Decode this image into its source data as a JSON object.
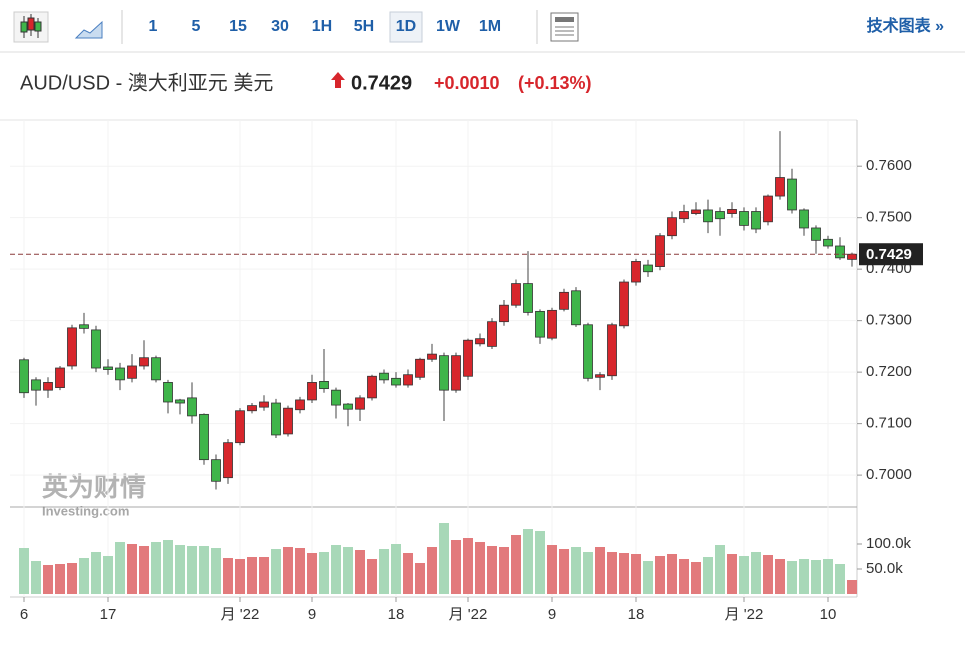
{
  "toolbar": {
    "intervals": [
      "1",
      "5",
      "15",
      "30",
      "1H",
      "5H",
      "1D",
      "1W",
      "1M"
    ],
    "selected": 6,
    "link": "技术图表 »"
  },
  "header": {
    "symbol": "AUD/USD - 澳大利亚元 美元",
    "price": "0.7429",
    "change": "+0.0010",
    "change_pct": "(+0.13%)"
  },
  "watermark": {
    "cn": "英为财情",
    "en": "Investing.com"
  },
  "chart_data": {
    "type": "candlestick",
    "categories": [
      "6",
      null,
      null,
      null,
      null,
      null,
      null,
      "17",
      null,
      null,
      null,
      null,
      null,
      null,
      null,
      null,
      null,
      null,
      "月 '22",
      null,
      null,
      null,
      null,
      null,
      "9",
      null,
      null,
      null,
      null,
      null,
      null,
      "18",
      null,
      null,
      null,
      null,
      null,
      "月 '22",
      null,
      null,
      null,
      null,
      null,
      null,
      "9",
      null,
      null,
      null,
      null,
      null,
      null,
      "18",
      null,
      null,
      null,
      null,
      null,
      null,
      null,
      null,
      "月 '22",
      null,
      null,
      null,
      null,
      null,
      null,
      "10",
      null,
      null
    ],
    "open": [
      0.7224,
      0.7185,
      0.7165,
      0.717,
      0.7212,
      0.7292,
      0.7282,
      0.721,
      0.7208,
      0.7188,
      0.7212,
      0.7228,
      0.718,
      0.7146,
      0.715,
      0.7118,
      0.703,
      0.6995,
      0.7063,
      0.7125,
      0.7132,
      0.714,
      0.708,
      0.7127,
      0.7146,
      0.7182,
      0.7165,
      0.7138,
      0.7128,
      0.715,
      0.7198,
      0.7188,
      0.7175,
      0.719,
      0.7225,
      0.7232,
      0.7165,
      0.7192,
      0.7255,
      0.725,
      0.7298,
      0.733,
      0.7372,
      0.7318,
      0.7266,
      0.7322,
      0.7358,
      0.7292,
      0.719,
      0.7193,
      0.729,
      0.7375,
      0.7408,
      0.7405,
      0.7465,
      0.7498,
      0.7508,
      0.7515,
      0.7512,
      0.7508,
      0.7512,
      0.7512,
      0.7492,
      0.7542,
      0.7575,
      0.7515,
      0.748,
      0.7458,
      0.7445,
      0.7419
    ],
    "high": [
      0.7228,
      0.719,
      0.719,
      0.7212,
      0.7292,
      0.7315,
      0.729,
      0.7225,
      0.7218,
      0.7235,
      0.7262,
      0.7232,
      0.7185,
      0.7148,
      0.718,
      0.712,
      0.704,
      0.707,
      0.713,
      0.714,
      0.7155,
      0.7148,
      0.7135,
      0.7152,
      0.7195,
      0.7245,
      0.717,
      0.714,
      0.7155,
      0.7195,
      0.7205,
      0.72,
      0.7205,
      0.7228,
      0.7255,
      0.7238,
      0.7238,
      0.7265,
      0.7275,
      0.7305,
      0.734,
      0.738,
      0.7435,
      0.7322,
      0.7325,
      0.7362,
      0.7365,
      0.7296,
      0.72,
      0.7296,
      0.738,
      0.742,
      0.7418,
      0.747,
      0.7512,
      0.7525,
      0.753,
      0.7535,
      0.752,
      0.753,
      0.752,
      0.752,
      0.7545,
      0.7668,
      0.7595,
      0.7518,
      0.7485,
      0.7465,
      0.7462,
      0.7432
    ],
    "low": [
      0.715,
      0.7135,
      0.715,
      0.7165,
      0.7205,
      0.7275,
      0.72,
      0.7195,
      0.7165,
      0.718,
      0.7205,
      0.718,
      0.712,
      0.7118,
      0.71,
      0.702,
      0.6972,
      0.6983,
      0.7058,
      0.712,
      0.7125,
      0.7072,
      0.7075,
      0.712,
      0.714,
      0.716,
      0.711,
      0.7095,
      0.7105,
      0.7145,
      0.7178,
      0.717,
      0.717,
      0.7185,
      0.722,
      0.7105,
      0.716,
      0.7185,
      0.725,
      0.7245,
      0.729,
      0.7325,
      0.731,
      0.7255,
      0.7262,
      0.7318,
      0.7288,
      0.7182,
      0.7165,
      0.7185,
      0.7285,
      0.7368,
      0.7385,
      0.7398,
      0.7458,
      0.749,
      0.7505,
      0.747,
      0.7465,
      0.75,
      0.7475,
      0.747,
      0.7485,
      0.7535,
      0.7508,
      0.7465,
      0.743,
      0.744,
      0.7418,
      0.7405
    ],
    "close": [
      0.716,
      0.7165,
      0.718,
      0.7208,
      0.7286,
      0.7285,
      0.7208,
      0.7205,
      0.7185,
      0.7212,
      0.7228,
      0.7185,
      0.7142,
      0.714,
      0.7115,
      0.703,
      0.6988,
      0.7063,
      0.7125,
      0.7135,
      0.7142,
      0.7078,
      0.713,
      0.7146,
      0.718,
      0.7168,
      0.7136,
      0.7128,
      0.715,
      0.7192,
      0.7185,
      0.7175,
      0.7195,
      0.7225,
      0.7235,
      0.7165,
      0.7232,
      0.7262,
      0.7265,
      0.7298,
      0.733,
      0.7372,
      0.7316,
      0.7268,
      0.732,
      0.7355,
      0.7292,
      0.7188,
      0.7195,
      0.7292,
      0.7375,
      0.7415,
      0.7395,
      0.7465,
      0.75,
      0.7512,
      0.7515,
      0.7492,
      0.7498,
      0.7516,
      0.7485,
      0.7478,
      0.7542,
      0.7578,
      0.7515,
      0.748,
      0.7456,
      0.7445,
      0.7422,
      0.7429
    ],
    "volume": [
      92000,
      66000,
      58000,
      60000,
      62000,
      72000,
      84000,
      76000,
      104000,
      100000,
      96000,
      104000,
      108000,
      98000,
      96000,
      96000,
      92000,
      72000,
      70000,
      74000,
      74000,
      90000,
      94000,
      92000,
      82000,
      84000,
      98000,
      94000,
      88000,
      70000,
      90000,
      100000,
      82000,
      62000,
      94000,
      142000,
      108000,
      112000,
      104000,
      96000,
      94000,
      118000,
      130000,
      126000,
      98000,
      90000,
      94000,
      84000,
      94000,
      84000,
      82000,
      80000,
      66000,
      76000,
      80000,
      70000,
      64000,
      74000,
      98000,
      80000,
      76000,
      84000,
      78000,
      70000,
      66000,
      70000,
      68000,
      70000,
      60000,
      28000
    ],
    "up_color": "#d7262c",
    "down_color": "#3fb54a",
    "up_volume_color": "#e27a7c",
    "down_volume_color": "#a8d8b8",
    "ylim": [
      0.694,
      0.768
    ],
    "yticks": [
      {
        "value": 0.7,
        "label": "0.7000"
      },
      {
        "value": 0.71,
        "label": "0.7100"
      },
      {
        "value": 0.72,
        "label": "0.7200"
      },
      {
        "value": 0.73,
        "label": "0.7300"
      },
      {
        "value": 0.74,
        "label": "0.7400"
      },
      {
        "value": 0.75,
        "label": "0.7500"
      },
      {
        "value": 0.76,
        "label": "0.7600"
      }
    ],
    "volume_ylim": [
      0,
      150000
    ],
    "volume_ticks": [
      {
        "value": 50000,
        "label": "50.0k"
      },
      {
        "value": 100000,
        "label": "100.0k"
      }
    ],
    "last_price": 0.7429
  }
}
